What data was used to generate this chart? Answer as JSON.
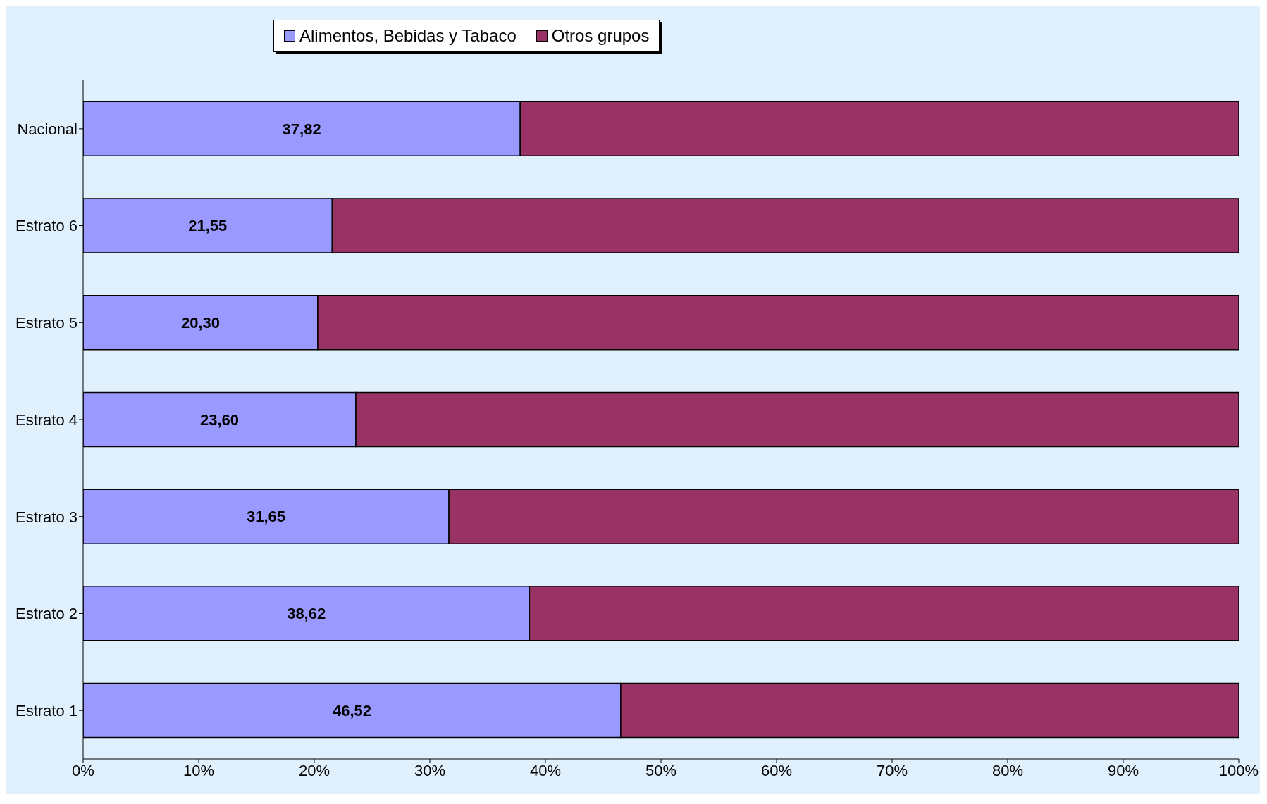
{
  "chart_data": {
    "type": "bar",
    "orientation": "horizontal",
    "stacked": true,
    "legend": "top left",
    "categories": [
      "Nacional",
      "Estrato 6",
      "Estrato 5",
      "Estrato 4",
      "Estrato 3",
      "Estrato 2",
      "Estrato 1"
    ],
    "series": [
      {
        "name": "Alimentos,  Bebidas  y  Tabaco",
        "color": "#9999ff",
        "values": [
          37.82,
          21.55,
          20.3,
          23.6,
          31.65,
          38.62,
          46.52
        ],
        "value_labels": [
          "37,82",
          "21,55",
          "20,30",
          "23,60",
          "31,65",
          "38,62",
          "46,52"
        ]
      },
      {
        "name": "Otros grupos",
        "color": "#993366",
        "values": [
          62.18,
          78.45,
          79.7,
          76.4,
          68.35,
          61.38,
          53.48
        ]
      }
    ],
    "xlim": [
      0,
      100
    ],
    "xticks": [
      {
        "value": 0,
        "label": "0%"
      },
      {
        "value": 10,
        "label": "10%"
      },
      {
        "value": 20,
        "label": "20%"
      },
      {
        "value": 30,
        "label": "30%"
      },
      {
        "value": 40,
        "label": "40%"
      },
      {
        "value": 50,
        "label": "50%"
      },
      {
        "value": 60,
        "label": "60%"
      },
      {
        "value": 70,
        "label": "70%"
      },
      {
        "value": 80,
        "label": "80%"
      },
      {
        "value": 90,
        "label": "90%"
      },
      {
        "value": 100,
        "label": "100%"
      }
    ]
  }
}
